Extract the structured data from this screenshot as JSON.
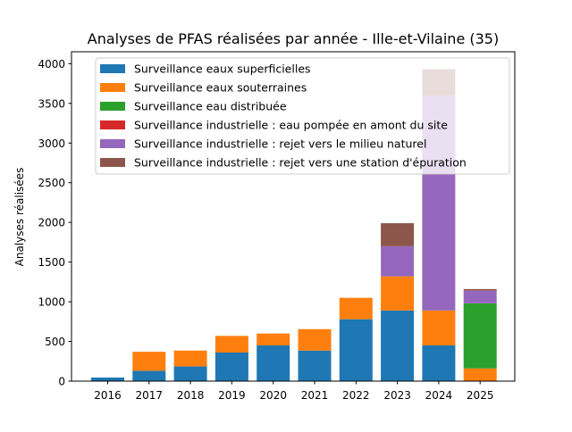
{
  "chart_data": {
    "type": "bar",
    "stacked": true,
    "title": "Analyses de PFAS réalisées par année - Ille-et-Vilaine (35)",
    "xlabel": "",
    "ylabel": "Analyses réalisées",
    "ylim": [
      0,
      4150
    ],
    "yticks": [
      0,
      500,
      1000,
      1500,
      2000,
      2500,
      3000,
      3500,
      4000
    ],
    "categories": [
      "2016",
      "2017",
      "2018",
      "2019",
      "2020",
      "2021",
      "2022",
      "2023",
      "2024",
      "2025"
    ],
    "legend_position": "top-left",
    "series": [
      {
        "name": "Surveillance eaux superficielles",
        "color": "#1f77b4",
        "values": [
          45,
          130,
          185,
          360,
          450,
          385,
          780,
          890,
          450,
          0
        ]
      },
      {
        "name": "Surveillance eaux souterraines",
        "color": "#ff7f0e",
        "values": [
          0,
          240,
          200,
          210,
          150,
          270,
          270,
          430,
          440,
          160
        ]
      },
      {
        "name": "Surveillance eau distribuée",
        "color": "#2ca02c",
        "values": [
          0,
          0,
          0,
          0,
          0,
          0,
          0,
          0,
          0,
          820
        ]
      },
      {
        "name": "Surveillance industrielle : eau pompée en amont du site",
        "color": "#d62728",
        "values": [
          0,
          0,
          0,
          0,
          0,
          0,
          0,
          0,
          0,
          0
        ]
      },
      {
        "name": "Surveillance industrielle : rejet vers le milieu naturel",
        "color": "#9467bd",
        "values": [
          0,
          0,
          0,
          0,
          0,
          0,
          0,
          380,
          2710,
          160
        ]
      },
      {
        "name": "Surveillance industrielle : rejet vers une station d'épuration",
        "color": "#8c564b",
        "values": [
          0,
          0,
          0,
          0,
          0,
          0,
          0,
          290,
          330,
          20
        ]
      }
    ]
  }
}
